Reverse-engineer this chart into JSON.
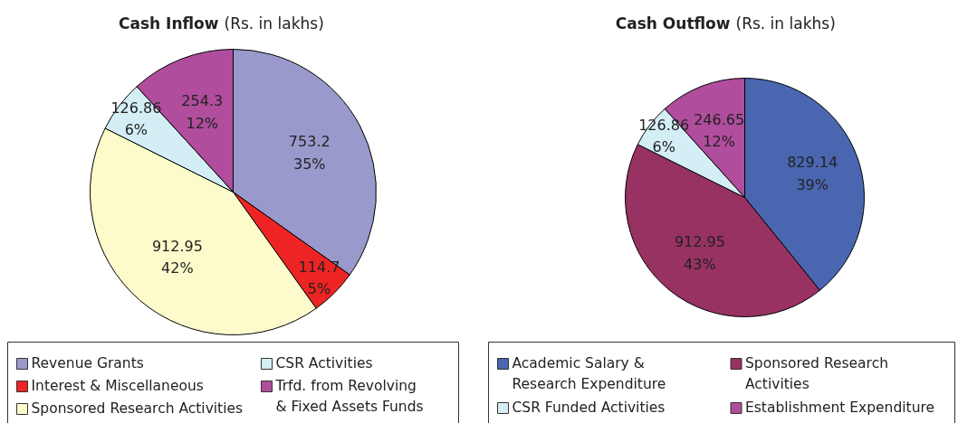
{
  "chart_data": [
    {
      "type": "pie",
      "title": "Cash Inflow",
      "subtitle": "(Rs. in lakhs)",
      "legend": "bottom",
      "categories": [
        "Revenue Grants",
        "Interest & Miscellaneous",
        "Sponsored Research Activities",
        "CSR Activities",
        "Trfd. from Revolving\n& Fixed Assets Funds"
      ],
      "values": [
        753.2,
        114.7,
        912.95,
        126.86,
        254.3
      ],
      "colors": [
        "#9999cc",
        "#ee2424",
        "#fdfbcb",
        "#d4eef6",
        "#b04d9c"
      ],
      "value_labels": [
        "753.2\n35%",
        "114.7\n5%",
        "912.95\n42%",
        "126.86\n6%",
        "254.3\n12%"
      ]
    },
    {
      "type": "pie",
      "title": "Cash Outflow",
      "subtitle": "(Rs. in lakhs)",
      "legend": "bottom",
      "categories": [
        "Academic Salary &\nResearch Expenditure",
        "Sponsored Research\nActivities",
        "CSR Funded Activities",
        "Establishment Expenditure"
      ],
      "values": [
        829.14,
        912.95,
        126.86,
        246.65
      ],
      "colors": [
        "#4a66b0",
        "#983262",
        "#d4eef6",
        "#b04d9c"
      ],
      "value_labels": [
        "829.14\n39%",
        "912.95\n43%",
        "126.86\n6%",
        "246.65\n12%"
      ]
    }
  ]
}
